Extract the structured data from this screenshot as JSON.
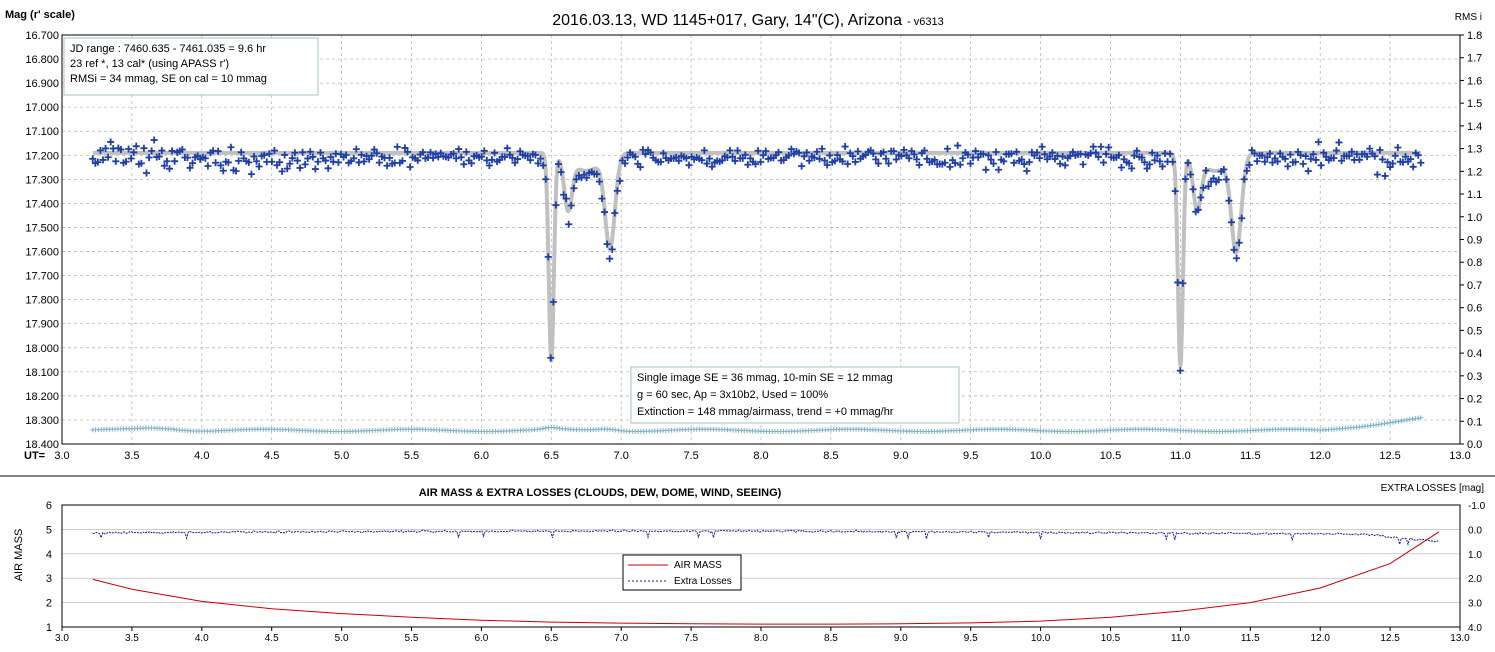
{
  "chart_data": [
    {
      "type": "scatter",
      "title": "2016.03.13,  WD 1145+017,  Gary, 14\"(C), Arizona",
      "title_suffix": " - v6313",
      "ylabel_left": "Mag (r' scale)",
      "ylabel_right": "RMS i",
      "x_axis_prefix": "UT=",
      "xlim": [
        3.0,
        13.0
      ],
      "ylim_left": [
        16.7,
        18.4
      ],
      "ylim_right": [
        0.0,
        1.8
      ],
      "left_axis_inverted": true,
      "grid": true,
      "x_ticks": [
        "3.0",
        "3.5",
        "4.0",
        "4.5",
        "5.0",
        "5.5",
        "6.0",
        "6.5",
        "7.0",
        "7.5",
        "8.0",
        "8.5",
        "9.0",
        "9.5",
        "10.0",
        "10.5",
        "11.0",
        "11.5",
        "12.0",
        "12.5",
        "13.0"
      ],
      "y_ticks_left": [
        "16.700",
        "16.800",
        "16.900",
        "17.000",
        "17.100",
        "17.200",
        "17.300",
        "17.400",
        "17.500",
        "17.600",
        "17.700",
        "17.800",
        "17.900",
        "18.000",
        "18.100",
        "18.200",
        "18.300",
        "18.400"
      ],
      "y_ticks_right": [
        "1.8",
        "1.7",
        "1.6",
        "1.5",
        "1.4",
        "1.3",
        "1.2",
        "1.1",
        "1.0",
        "0.9",
        "0.8",
        "0.7",
        "0.6",
        "0.5",
        "0.4",
        "0.3",
        "0.2",
        "0.1",
        "0.0"
      ],
      "info_box_1": [
        "JD range  : 7460.635 - 7461.035  = 9.6 hr",
        " 23 ref *, 13 cal* (using APASS r')",
        "RMSi = 34 mmag, SE on cal = 10 mmag"
      ],
      "info_box_2": [
        "Single image SE = 36 mmag, 10-min SE = 12 mmag",
        "g = 60 sec, Ap = 3x10b2, Used = 100%",
        "Extinction = 148 mmag/airmass, trend = +0 mmag/hr"
      ],
      "series": [
        {
          "kind": "magnitude",
          "color": "#1f3fa6",
          "marker": "plus",
          "baseline": 17.21,
          "scatter": 0.04,
          "x_range": [
            3.22,
            12.72
          ],
          "n_points": 520
        },
        {
          "kind": "model",
          "color": "#c0c0c0",
          "baseline": 17.19,
          "dips": [
            {
              "ut": 6.5,
              "depth_mag": 18.05
            },
            {
              "ut": 6.62,
              "depth_mag": 17.4
            },
            {
              "ut": 6.92,
              "depth_mag": 17.57
            },
            {
              "ut": 11.0,
              "depth_mag": 18.07
            },
            {
              "ut": 11.12,
              "depth_mag": 17.4
            },
            {
              "ut": 11.4,
              "depth_mag": 17.58
            }
          ]
        },
        {
          "kind": "rms",
          "color": "#7fb3c8",
          "marker": "plus",
          "baseline_rms": 0.06,
          "rise_end": {
            "ut": 12.7,
            "rms": 0.11
          }
        }
      ]
    },
    {
      "type": "line",
      "title": "AIR MASS & EXTRA LOSSES (CLOUDS, DEW, DOME, WIND, SEEING)",
      "ylabel_left": "AIR MASS",
      "ylabel_right": "EXTRA LOSSES [mag]",
      "xlim": [
        3.0,
        13.0
      ],
      "ylim_left": [
        1,
        6
      ],
      "ylim_right": [
        -1.0,
        4.0
      ],
      "right_axis_inverted": true,
      "legend_position": "center-left",
      "x_ticks": [
        "3.0",
        "3.5",
        "4.0",
        "4.5",
        "5.0",
        "5.5",
        "6.0",
        "6.5",
        "7.0",
        "7.5",
        "8.0",
        "8.5",
        "9.0",
        "9.5",
        "10.0",
        "10.5",
        "11.0",
        "11.5",
        "12.0",
        "12.5",
        "13.0"
      ],
      "y_ticks_left": [
        "6",
        "5",
        "4",
        "3",
        "2",
        "1"
      ],
      "y_ticks_right": [
        "-1.0",
        "0.0",
        "1.0",
        "2.0",
        "3.0",
        "4.0"
      ],
      "series": [
        {
          "name": "AIR MASS",
          "color": "#cc0000",
          "x": [
            3.22,
            3.5,
            4.0,
            4.5,
            5.0,
            5.5,
            6.0,
            6.5,
            7.0,
            7.5,
            8.0,
            8.5,
            9.0,
            9.5,
            10.0,
            10.5,
            11.0,
            11.5,
            12.0,
            12.5,
            12.85
          ],
          "values": [
            2.95,
            2.55,
            2.05,
            1.75,
            1.55,
            1.4,
            1.28,
            1.2,
            1.16,
            1.13,
            1.12,
            1.12,
            1.13,
            1.17,
            1.24,
            1.4,
            1.65,
            2.0,
            2.6,
            3.6,
            4.9
          ]
        },
        {
          "name": "Extra Losses",
          "color": "#1a1aa0",
          "baseline": 0.15,
          "x_range": [
            3.22,
            12.85
          ]
        }
      ]
    }
  ]
}
